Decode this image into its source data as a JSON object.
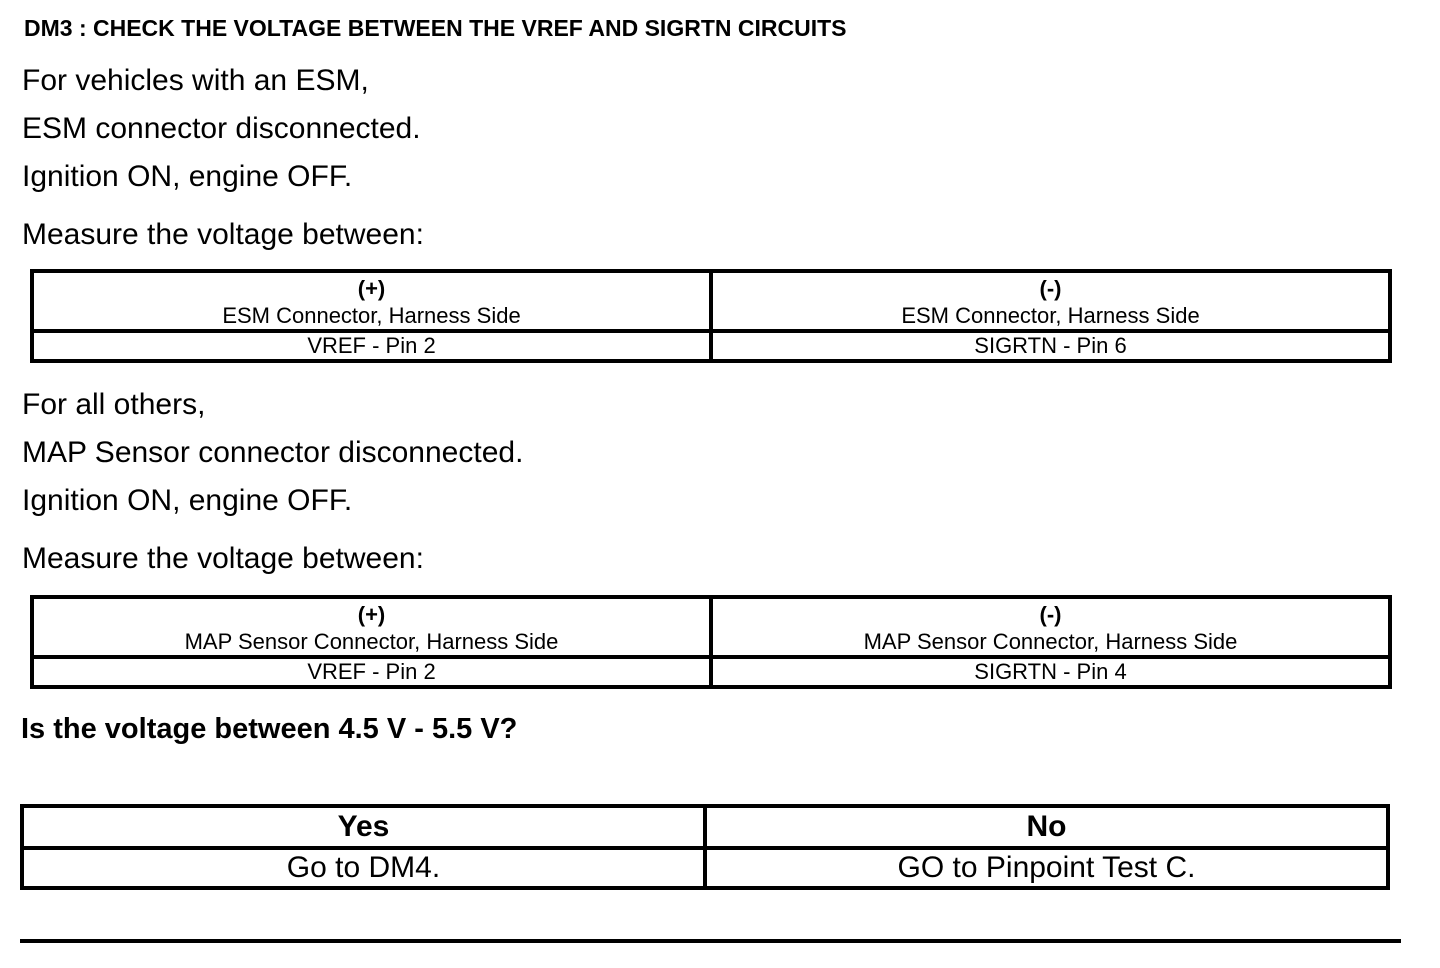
{
  "title": "DM3 : CHECK THE VOLTAGE BETWEEN THE VREF AND SIGRTN CIRCUITS",
  "esm": {
    "lines": [
      "For vehicles with an ESM,",
      "ESM connector disconnected.",
      "Ignition ON, engine OFF."
    ],
    "measure": "Measure the voltage between:",
    "table": {
      "pos_sign": "(+)",
      "pos_label": "ESM Connector, Harness Side",
      "neg_sign": "(-)",
      "neg_label": "ESM Connector, Harness Side",
      "pos_pin": "VREF - Pin 2",
      "neg_pin": "SIGRTN - Pin 6"
    }
  },
  "others": {
    "lines": [
      "For all others,",
      "MAP Sensor connector disconnected.",
      "Ignition ON, engine OFF."
    ],
    "measure": "Measure the voltage between:",
    "table": {
      "pos_sign": "(+)",
      "pos_label": "MAP Sensor Connector, Harness Side",
      "neg_sign": "(-)",
      "neg_label": "MAP Sensor Connector, Harness Side",
      "pos_pin": "VREF - Pin 2",
      "neg_pin": "SIGRTN - Pin 4"
    }
  },
  "question": "Is the voltage between 4.5 V - 5.5 V?",
  "answers": {
    "yes": "Yes",
    "no": "No",
    "yes_action": "Go to DM4.",
    "no_action": "GO to Pinpoint Test C."
  }
}
